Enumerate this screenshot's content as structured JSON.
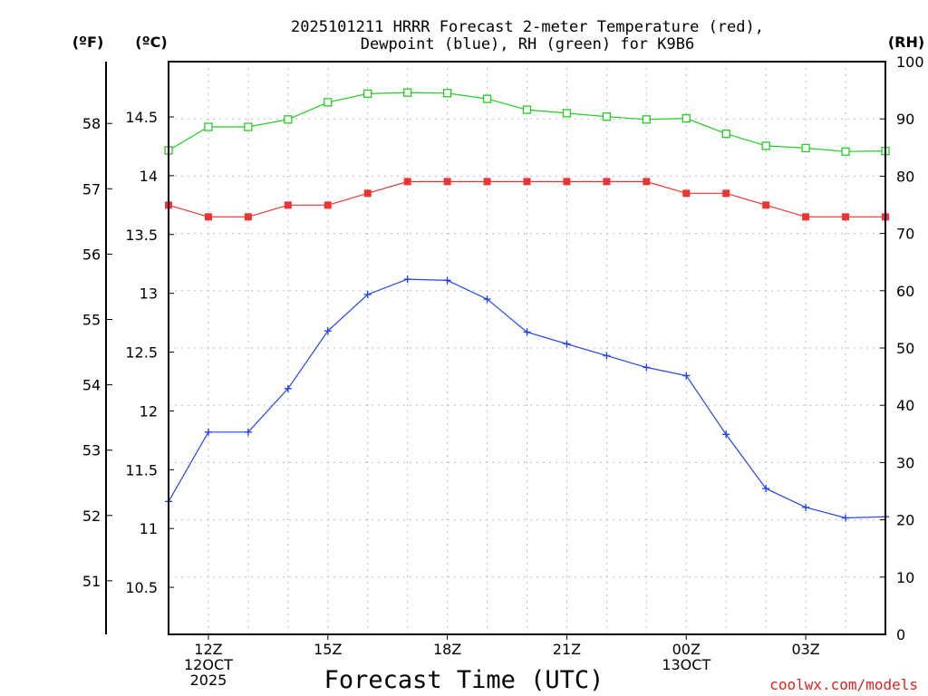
{
  "chart_data": {
    "type": "line",
    "title_line1": "2025101211 HRRR Forecast 2-meter Temperature (red),",
    "title_line2": "Dewpoint (blue), RH (green) for K9B6",
    "xlabel": "Forecast Time (UTC)",
    "credit": "coolwx.com/models",
    "unit_labels": {
      "fahrenheit": "(ºF)",
      "celsius": "(ºC)",
      "rh": "(RH)"
    },
    "x_hours": [
      11,
      12,
      13,
      14,
      15,
      16,
      17,
      18,
      19,
      20,
      21,
      22,
      23,
      24,
      25,
      26,
      27,
      28,
      29
    ],
    "x_range": [
      11,
      29
    ],
    "x_ticks": [
      {
        "hour": 12,
        "lines": [
          "12Z",
          "12OCT",
          "2025"
        ]
      },
      {
        "hour": 15,
        "lines": [
          "15Z"
        ]
      },
      {
        "hour": 18,
        "lines": [
          "18Z"
        ]
      },
      {
        "hour": 21,
        "lines": [
          "21Z"
        ]
      },
      {
        "hour": 24,
        "lines": [
          "00Z",
          "13OCT"
        ]
      },
      {
        "hour": 27,
        "lines": [
          "03Z"
        ]
      }
    ],
    "celsius_axis": {
      "range": [
        10.1,
        14.97
      ],
      "ticks": [
        "10.5",
        "11",
        "11.5",
        "12",
        "12.5",
        "13",
        "13.5",
        "14",
        "14.5"
      ]
    },
    "fahrenheit_axis": {
      "ticks": [
        "51",
        "52",
        "53",
        "54",
        "55",
        "56",
        "57",
        "58"
      ]
    },
    "rh_axis": {
      "range": [
        0,
        100
      ],
      "ticks": [
        "0",
        "10",
        "20",
        "30",
        "40",
        "50",
        "60",
        "70",
        "80",
        "90",
        "100"
      ]
    },
    "series": [
      {
        "name": "Temperature",
        "axis": "celsius",
        "color": "#ee3333",
        "marker": "filled-square",
        "values": [
          13.75,
          13.65,
          13.65,
          13.75,
          13.75,
          13.85,
          13.95,
          13.95,
          13.95,
          13.95,
          13.95,
          13.95,
          13.95,
          13.85,
          13.85,
          13.75,
          13.65,
          13.65,
          13.65
        ]
      },
      {
        "name": "Dewpoint",
        "axis": "celsius",
        "color": "#2244ee",
        "marker": "plus",
        "values": [
          11.23,
          11.82,
          11.82,
          12.19,
          12.68,
          12.99,
          13.12,
          13.11,
          12.95,
          12.67,
          12.57,
          12.47,
          12.37,
          12.3,
          11.8,
          11.34,
          11.18,
          11.09,
          11.1
        ]
      },
      {
        "name": "RH",
        "axis": "rh",
        "color": "#22cc22",
        "marker": "open-square",
        "values": [
          84.5,
          88.6,
          88.6,
          89.9,
          92.9,
          94.4,
          94.6,
          94.5,
          93.5,
          91.6,
          91.0,
          90.4,
          89.9,
          90.1,
          87.4,
          85.3,
          84.9,
          84.3,
          84.4
        ]
      }
    ]
  }
}
